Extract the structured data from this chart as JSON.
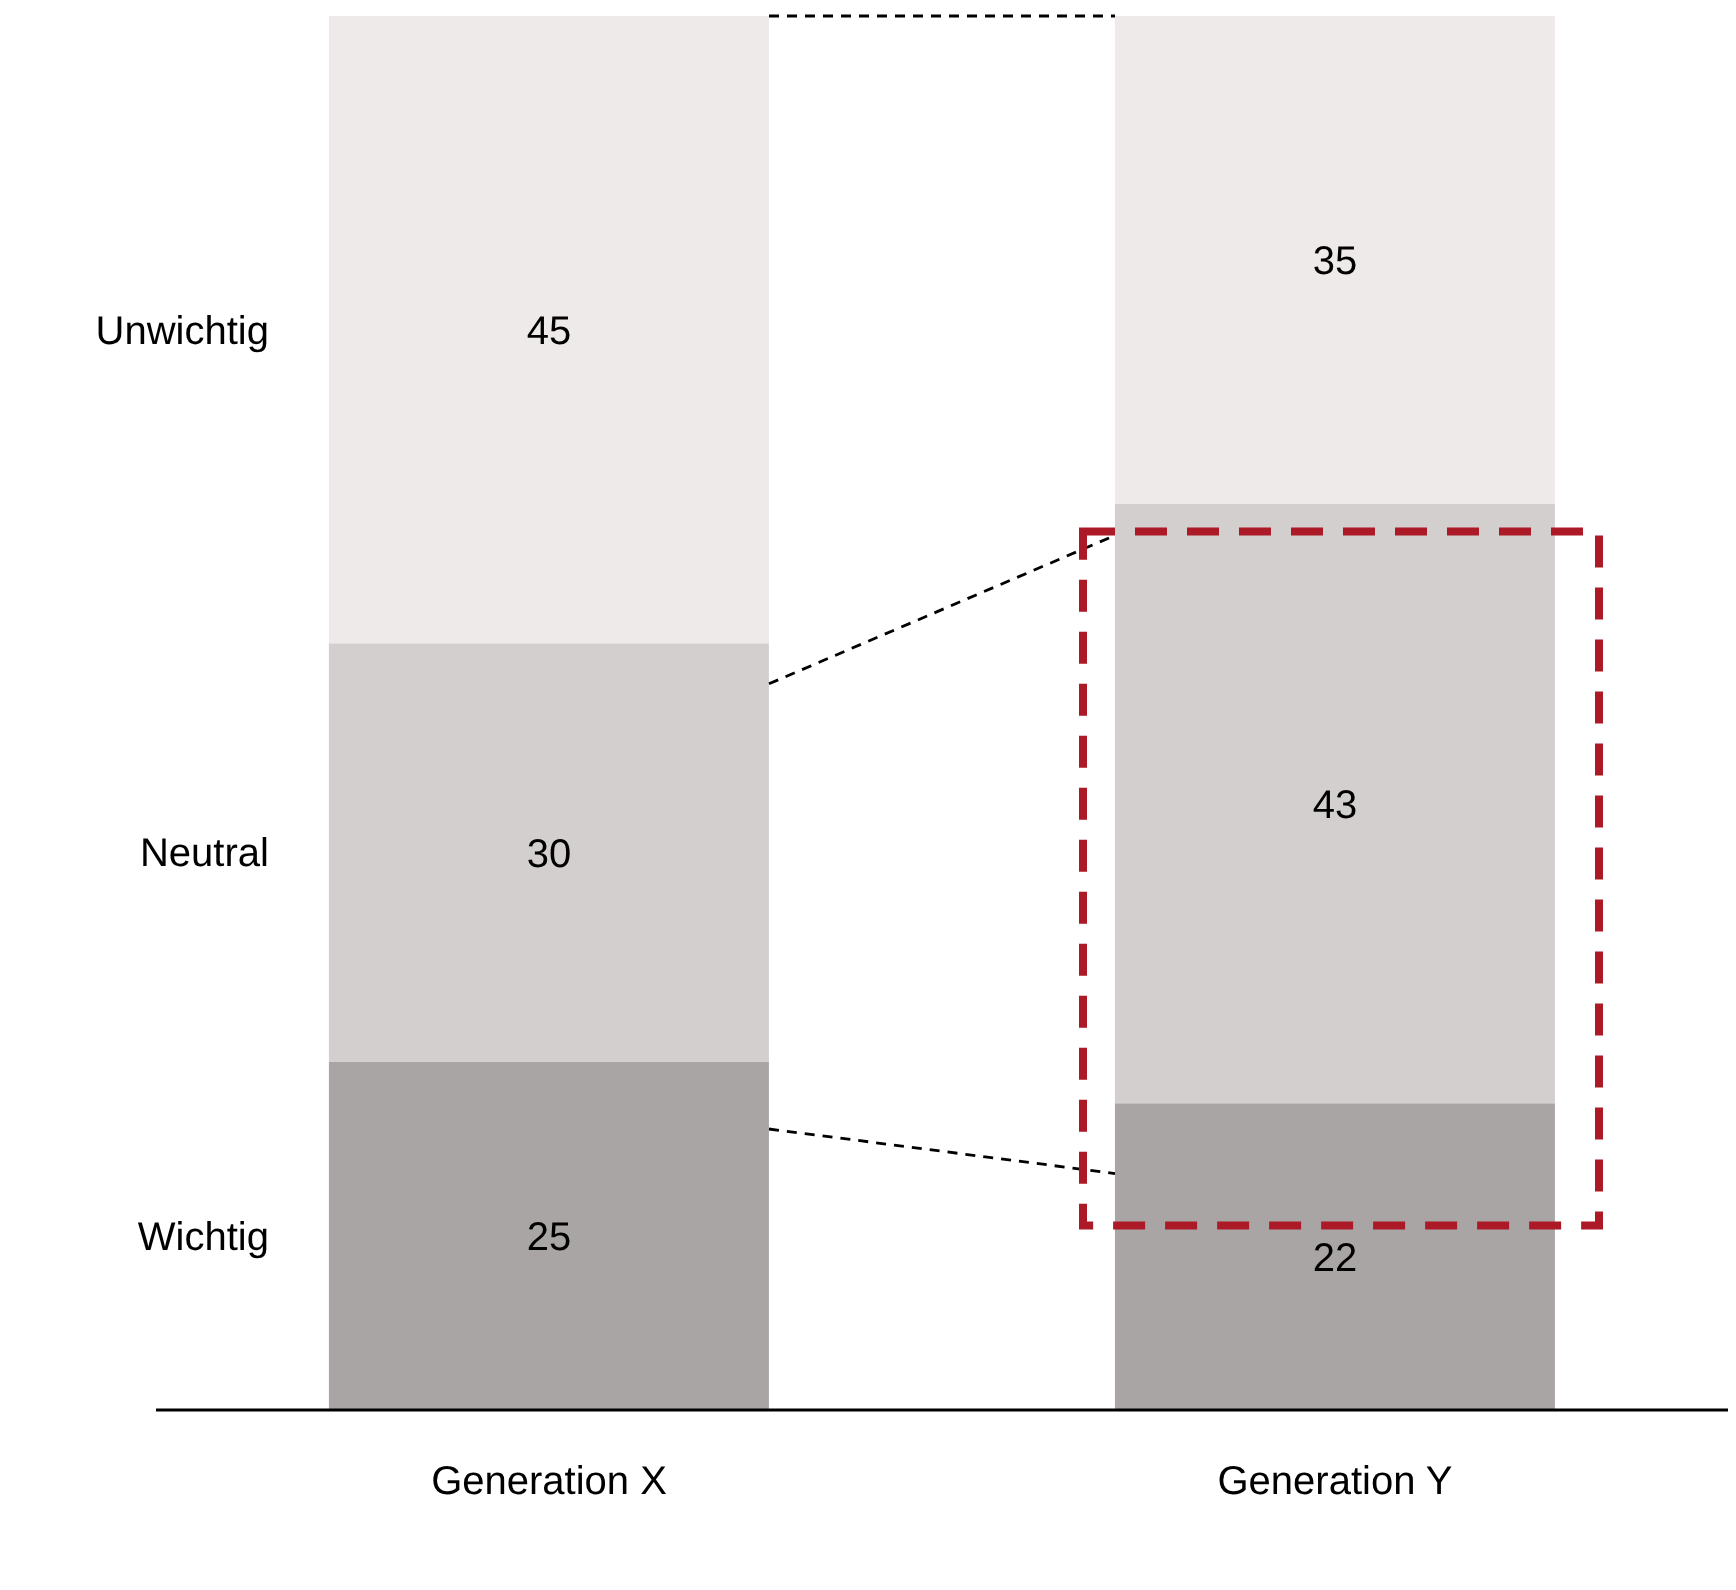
{
  "chart_data": {
    "type": "bar",
    "stacked": true,
    "categories": [
      "Generation X",
      "Generation Y"
    ],
    "series": [
      {
        "name": "Wichtig",
        "color": "#a9a5a4",
        "values": [
          25,
          22
        ]
      },
      {
        "name": "Neutral",
        "color": "#d3cfce",
        "values": [
          30,
          43
        ]
      },
      {
        "name": "Unwichtig",
        "color": "#eeeae9",
        "values": [
          45,
          35
        ]
      }
    ],
    "data_labels": true
  }
}
